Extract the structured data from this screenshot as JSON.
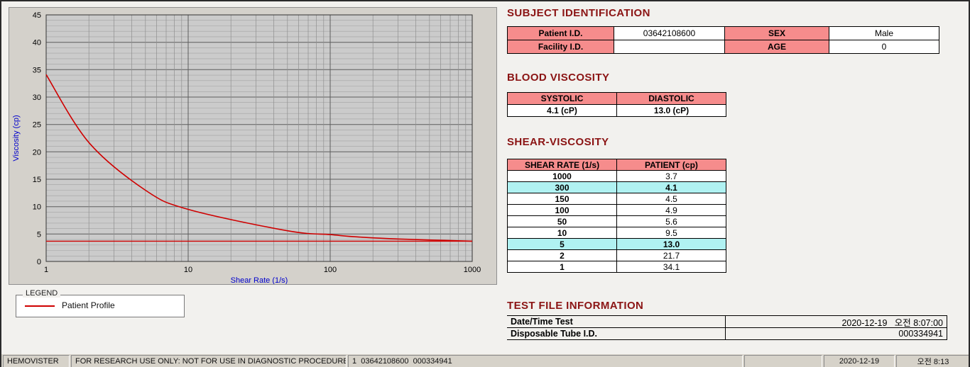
{
  "chart_data": {
    "type": "line",
    "xlabel": "Shear Rate (1/s)",
    "ylabel": "Viscosity (cp)",
    "x_scale": "log",
    "xlim": [
      1,
      1000
    ],
    "ylim": [
      0,
      45
    ],
    "x_ticks": [
      1,
      10,
      100,
      1000
    ],
    "y_ticks": [
      0,
      5,
      10,
      15,
      20,
      25,
      30,
      35,
      40,
      45
    ],
    "grid": true,
    "legend_position": "below-left",
    "series": [
      {
        "name": "Patient Profile",
        "color": "#cf0000",
        "x": [
          1,
          2,
          5,
          10,
          50,
          100,
          150,
          300,
          1000
        ],
        "y": [
          34.1,
          21.7,
          13.0,
          9.5,
          5.6,
          4.9,
          4.5,
          4.1,
          3.7
        ]
      }
    ],
    "reference_line": {
      "y": 3.7,
      "color": "#cf0000"
    }
  },
  "legend": {
    "title": "LEGEND",
    "series": "Patient Profile",
    "line_color": "#cf0000"
  },
  "subject": {
    "section_title": "SUBJECT IDENTIFICATION",
    "rows": [
      {
        "l1": "Patient I.D.",
        "v1": "03642108600",
        "l2": "SEX",
        "v2": "Male"
      },
      {
        "l1": "Facility I.D.",
        "v1": "",
        "l2": "AGE",
        "v2": "0"
      }
    ]
  },
  "blood_viscosity": {
    "section_title": "BLOOD VISCOSITY",
    "headers": [
      "SYSTOLIC",
      "DIASTOLIC"
    ],
    "values": [
      "4.1 (cP)",
      "13.0 (cP)"
    ]
  },
  "shear_viscosity": {
    "section_title": "SHEAR-VISCOSITY",
    "headers": [
      "SHEAR RATE (1/s)",
      "PATIENT (cp)"
    ],
    "rows": [
      {
        "rate": "1000",
        "value": "3.7",
        "highlight": false
      },
      {
        "rate": "300",
        "value": "4.1",
        "highlight": true
      },
      {
        "rate": "150",
        "value": "4.5",
        "highlight": false
      },
      {
        "rate": "100",
        "value": "4.9",
        "highlight": false
      },
      {
        "rate": "50",
        "value": "5.6",
        "highlight": false
      },
      {
        "rate": "10",
        "value": "9.5",
        "highlight": false
      },
      {
        "rate": "5",
        "value": "13.0",
        "highlight": true
      },
      {
        "rate": "2",
        "value": "21.7",
        "highlight": false
      },
      {
        "rate": "1",
        "value": "34.1",
        "highlight": false
      }
    ]
  },
  "test_file": {
    "section_title": "TEST FILE INFORMATION",
    "rows": [
      {
        "label": "Date/Time Test",
        "value": "2020-12-19   오전 8:07:00"
      },
      {
        "label": "Disposable Tube I.D.",
        "value": "000334941"
      }
    ]
  },
  "statusbar": {
    "items": [
      "HEMOVISTER",
      "FOR RESEARCH USE ONLY: NOT FOR USE IN DIAGNOSTIC PROCEDURES",
      "1  03642108600  000334941",
      "",
      "2020-12-19",
      "오전 8:13"
    ]
  },
  "colors": {
    "section_title": "#8b1414",
    "table_header_bg": "#f68c8c",
    "highlight_bg": "#b0f2f2",
    "curve": "#cf0000",
    "axis_label": "#0000cc"
  }
}
